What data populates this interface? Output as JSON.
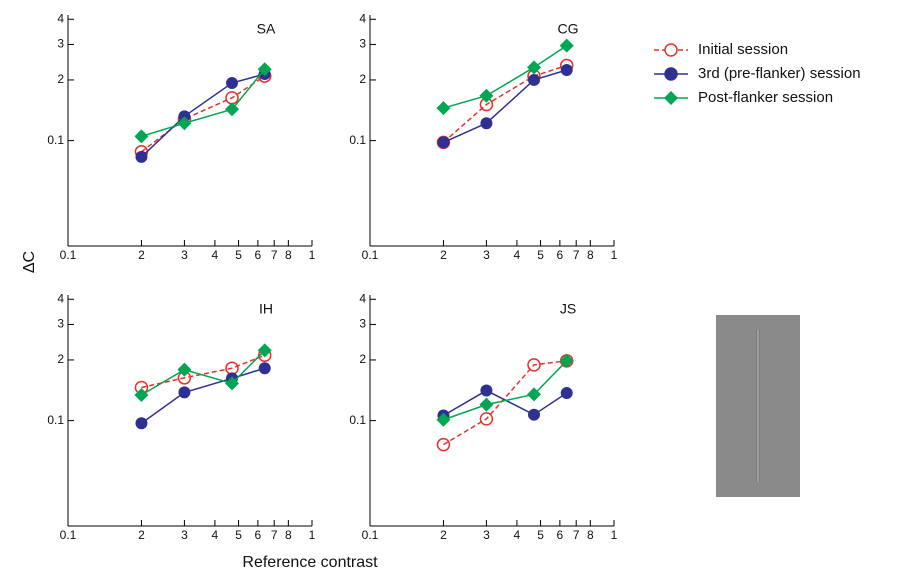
{
  "chart_data": [
    {
      "type": "line",
      "title": "SA",
      "log_x": true,
      "log_y": true,
      "x": [
        0.2,
        0.3,
        0.47,
        0.64
      ],
      "series": [
        {
          "name": "Initial session",
          "color": "#e8302a",
          "marker": "open-circle",
          "dashed": true,
          "values": [
            0.088,
            0.128,
            0.163,
            0.209
          ]
        },
        {
          "name": "3rd (pre-flanker) session",
          "color": "#2e3192",
          "marker": "circle",
          "dashed": false,
          "values": [
            0.083,
            0.132,
            0.193,
            0.214
          ]
        },
        {
          "name": "Post-flanker session",
          "color": "#00a651",
          "marker": "diamond",
          "dashed": false,
          "values": [
            0.105,
            0.122,
            0.143,
            0.226
          ]
        }
      ],
      "xlim": [
        0.1,
        1
      ],
      "ylim": [
        0.03,
        0.42
      ],
      "xticks": [
        0.1,
        {
          "value": 0.2,
          "label": "2"
        },
        {
          "value": 0.3,
          "label": "3"
        },
        {
          "value": 0.4,
          "label": "4"
        },
        {
          "value": 0.5,
          "label": "5"
        },
        {
          "value": 0.6,
          "label": "6"
        },
        {
          "value": 0.7,
          "label": "7"
        },
        {
          "value": 0.8,
          "label": "8"
        },
        1
      ],
      "yticks": [
        0.1,
        {
          "value": 0.2,
          "label": "2"
        },
        {
          "value": 0.3,
          "label": "3"
        },
        {
          "value": 0.4,
          "label": "4"
        }
      ]
    },
    {
      "type": "line",
      "title": "CG",
      "log_x": true,
      "log_y": true,
      "x": [
        0.2,
        0.3,
        0.47,
        0.64
      ],
      "series": [
        {
          "name": "Initial session",
          "color": "#e8302a",
          "marker": "open-circle",
          "dashed": true,
          "values": [
            0.098,
            0.151,
            0.209,
            0.236
          ]
        },
        {
          "name": "3rd (pre-flanker) session",
          "color": "#2e3192",
          "marker": "circle",
          "dashed": false,
          "values": [
            0.098,
            0.122,
            0.2,
            0.224
          ]
        },
        {
          "name": "Post-flanker session",
          "color": "#00a651",
          "marker": "diamond",
          "dashed": false,
          "values": [
            0.145,
            0.167,
            0.231,
            0.296
          ]
        }
      ],
      "xlim": [
        0.1,
        1
      ],
      "ylim": [
        0.03,
        0.42
      ],
      "xticks": [
        0.1,
        {
          "value": 0.2,
          "label": "2"
        },
        {
          "value": 0.3,
          "label": "3"
        },
        {
          "value": 0.4,
          "label": "4"
        },
        {
          "value": 0.5,
          "label": "5"
        },
        {
          "value": 0.6,
          "label": "6"
        },
        {
          "value": 0.7,
          "label": "7"
        },
        {
          "value": 0.8,
          "label": "8"
        },
        1
      ],
      "yticks": [
        0.1,
        {
          "value": 0.2,
          "label": "2"
        },
        {
          "value": 0.3,
          "label": "3"
        },
        {
          "value": 0.4,
          "label": "4"
        }
      ]
    },
    {
      "type": "line",
      "title": "IH",
      "log_x": true,
      "log_y": true,
      "x": [
        0.2,
        0.3,
        0.47,
        0.64
      ],
      "series": [
        {
          "name": "Initial session",
          "color": "#e8302a",
          "marker": "open-circle",
          "dashed": true,
          "values": [
            0.146,
            0.163,
            0.182,
            0.211
          ]
        },
        {
          "name": "3rd (pre-flanker) session",
          "color": "#2e3192",
          "marker": "circle",
          "dashed": false,
          "values": [
            0.097,
            0.138,
            0.162,
            0.182
          ]
        },
        {
          "name": "Post-flanker session",
          "color": "#00a651",
          "marker": "diamond",
          "dashed": false,
          "values": [
            0.134,
            0.179,
            0.153,
            0.223
          ]
        }
      ],
      "xlim": [
        0.1,
        1
      ],
      "ylim": [
        0.03,
        0.42
      ],
      "xticks": [
        0.1,
        {
          "value": 0.2,
          "label": "2"
        },
        {
          "value": 0.3,
          "label": "3"
        },
        {
          "value": 0.4,
          "label": "4"
        },
        {
          "value": 0.5,
          "label": "5"
        },
        {
          "value": 0.6,
          "label": "6"
        },
        {
          "value": 0.7,
          "label": "7"
        },
        {
          "value": 0.8,
          "label": "8"
        },
        1
      ],
      "yticks": [
        0.1,
        {
          "value": 0.2,
          "label": "2"
        },
        {
          "value": 0.3,
          "label": "3"
        },
        {
          "value": 0.4,
          "label": "4"
        }
      ]
    },
    {
      "type": "line",
      "title": "JS",
      "log_x": true,
      "log_y": true,
      "x": [
        0.2,
        0.3,
        0.47,
        0.64
      ],
      "series": [
        {
          "name": "Initial session",
          "color": "#e8302a",
          "marker": "open-circle",
          "dashed": true,
          "values": [
            0.076,
            0.102,
            0.189,
            0.198
          ]
        },
        {
          "name": "3rd (pre-flanker) session",
          "color": "#2e3192",
          "marker": "circle",
          "dashed": false,
          "values": [
            0.106,
            0.141,
            0.107,
            0.137
          ]
        },
        {
          "name": "Post-flanker session",
          "color": "#00a651",
          "marker": "diamond",
          "dashed": false,
          "values": [
            0.101,
            0.12,
            0.135,
            0.198
          ]
        }
      ],
      "xlim": [
        0.1,
        1
      ],
      "ylim": [
        0.03,
        0.42
      ],
      "xticks": [
        0.1,
        {
          "value": 0.2,
          "label": "2"
        },
        {
          "value": 0.3,
          "label": "3"
        },
        {
          "value": 0.4,
          "label": "4"
        },
        {
          "value": 0.5,
          "label": "5"
        },
        {
          "value": 0.6,
          "label": "6"
        },
        {
          "value": 0.7,
          "label": "7"
        },
        {
          "value": 0.8,
          "label": "8"
        },
        1
      ],
      "yticks": [
        0.1,
        {
          "value": 0.2,
          "label": "2"
        },
        {
          "value": 0.3,
          "label": "3"
        },
        {
          "value": 0.4,
          "label": "4"
        }
      ]
    }
  ],
  "x_label": "Reference contrast",
  "y_label": "ΔC"
}
